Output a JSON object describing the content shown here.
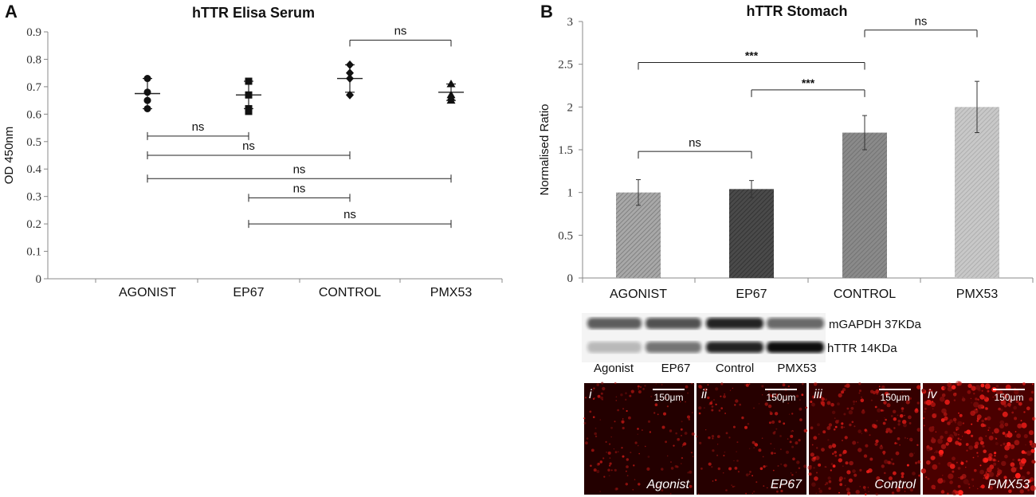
{
  "panel_a_letter": "A",
  "panel_b_letter": "B",
  "chart_data": [
    {
      "type": "scatter",
      "title": "hTTR Elisa Serum",
      "xlabel": "",
      "ylabel": "OD 450nm",
      "ylim": [
        0,
        0.9
      ],
      "yticks": [
        "0",
        "0.1",
        "0.2",
        "0.3",
        "0.4",
        "0.5",
        "0.6",
        "0.7",
        "0.8",
        "0.9"
      ],
      "categories": [
        "AGONIST",
        "EP67",
        "CONTROL",
        "PMX53"
      ],
      "markers": [
        "circle",
        "square",
        "diamond",
        "triangle"
      ],
      "points": [
        [
          0.73,
          0.68,
          0.65,
          0.62
        ],
        [
          0.72,
          0.67,
          0.62,
          0.61
        ],
        [
          0.78,
          0.75,
          0.73,
          0.67
        ],
        [
          0.71,
          0.67,
          0.66,
          0.65
        ]
      ],
      "mean": [
        0.675,
        0.67,
        0.73,
        0.68
      ],
      "sd": [
        0.055,
        0.05,
        0.05,
        0.03
      ],
      "comparisons": [
        {
          "from": "CONTROL",
          "to": "PMX53",
          "y": 0.87,
          "label": "ns",
          "level": "top"
        },
        {
          "from": "AGONIST",
          "to": "EP67",
          "y": 0.52,
          "label": "ns"
        },
        {
          "from": "AGONIST",
          "to": "CONTROL",
          "y": 0.45,
          "label": "ns"
        },
        {
          "from": "AGONIST",
          "to": "PMX53",
          "y": 0.365,
          "label": "ns"
        },
        {
          "from": "EP67",
          "to": "CONTROL",
          "y": 0.295,
          "label": "ns"
        },
        {
          "from": "EP67",
          "to": "PMX53",
          "y": 0.2,
          "label": "ns"
        }
      ]
    },
    {
      "type": "bar",
      "title": "hTTR Stomach",
      "xlabel": "",
      "ylabel": "Normalised Ratio",
      "ylim": [
        0,
        3
      ],
      "yticks": [
        "0",
        "0.5",
        "1",
        "1.5",
        "2",
        "2.5",
        "3"
      ],
      "categories": [
        "AGONIST",
        "EP67",
        "CONTROL",
        "PMX53"
      ],
      "values": [
        1.0,
        1.04,
        1.7,
        2.0
      ],
      "errors": [
        0.15,
        0.1,
        0.2,
        0.3
      ],
      "colors": [
        "#8c8c8c",
        "#3c3c3c",
        "#7d7d7d",
        "#b8b8b8"
      ],
      "comparisons": [
        {
          "from": "CONTROL",
          "to": "PMX53",
          "y": 2.9,
          "label": "ns"
        },
        {
          "from": "AGONIST",
          "to": "CONTROL",
          "y": 2.52,
          "label": "***"
        },
        {
          "from": "EP67",
          "to": "CONTROL",
          "y": 2.2,
          "label": "***"
        },
        {
          "from": "AGONIST",
          "to": "EP67",
          "y": 1.48,
          "label": "ns"
        }
      ]
    }
  ],
  "western_blot": {
    "bands": [
      "mGAPDH 37KDa",
      "hTTR 14KDa"
    ],
    "lanes": [
      "Agonist",
      "EP67",
      "Control",
      "PMX53"
    ],
    "gapdh_intensity": [
      0.65,
      0.7,
      0.9,
      0.6
    ],
    "httr_intensity": [
      0.25,
      0.55,
      0.9,
      1.0
    ]
  },
  "micrographs": [
    {
      "numeral": "i",
      "label": "Agonist",
      "scale": "150μm",
      "intensity": 0.25
    },
    {
      "numeral": "ii",
      "label": "EP67",
      "scale": "150μm",
      "intensity": 0.3
    },
    {
      "numeral": "iii",
      "label": "Control",
      "scale": "150μm",
      "intensity": 0.55
    },
    {
      "numeral": "iv",
      "label": "PMX53",
      "scale": "150μm",
      "intensity": 0.9
    }
  ]
}
